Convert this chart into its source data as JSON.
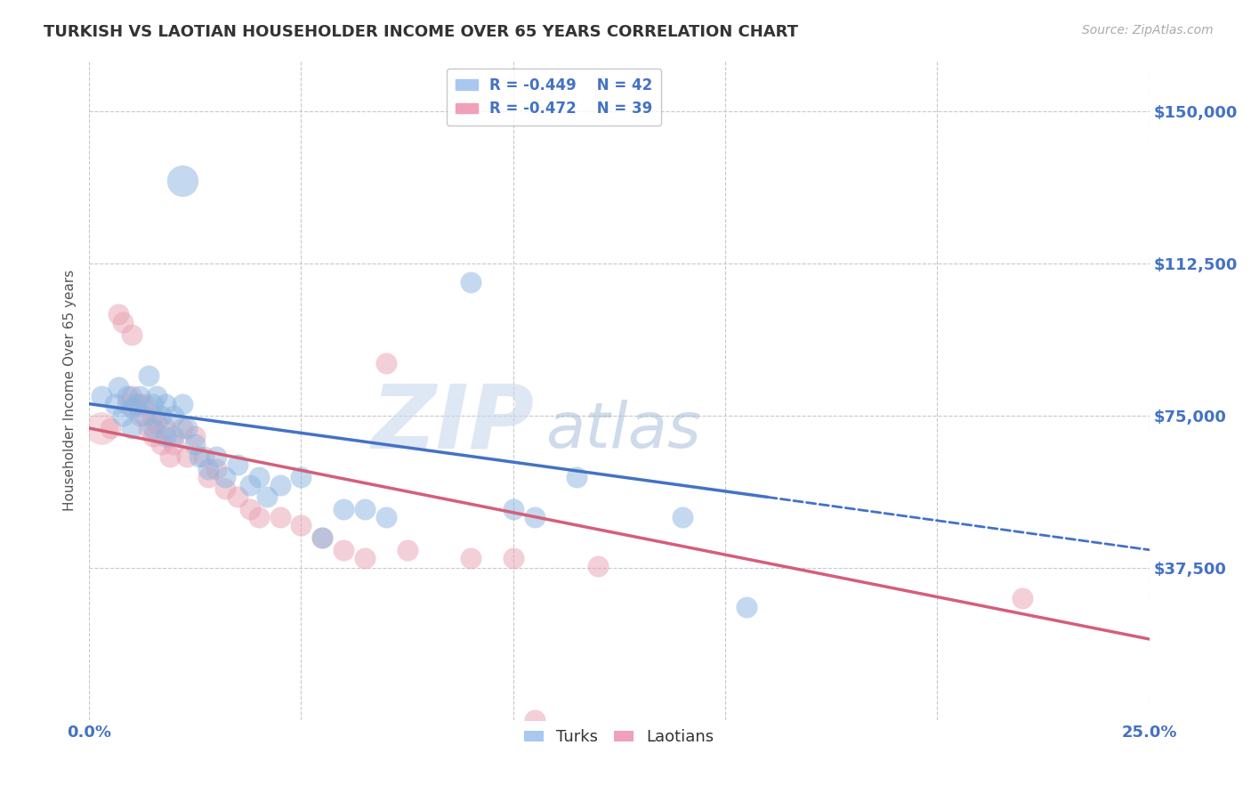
{
  "title": "TURKISH VS LAOTIAN HOUSEHOLDER INCOME OVER 65 YEARS CORRELATION CHART",
  "source": "Source: ZipAtlas.com",
  "ylabel": "Householder Income Over 65 years",
  "y_tick_labels": [
    "$150,000",
    "$112,500",
    "$75,000",
    "$37,500"
  ],
  "y_tick_values": [
    150000,
    112500,
    75000,
    37500
  ],
  "xlim": [
    0.0,
    0.25
  ],
  "ylim": [
    0,
    162500
  ],
  "turks_R": "-0.449",
  "turks_N": "42",
  "laotians_R": "-0.472",
  "laotians_N": "39",
  "turk_color": "#8ab4e0",
  "laotian_color": "#e8a0b0",
  "turk_line_color": "#4472c4",
  "laotian_line_color": "#d45f7a",
  "turk_line": [
    [
      0.0,
      78000
    ],
    [
      0.16,
      55000
    ]
  ],
  "turk_line_dash": [
    [
      0.16,
      55000
    ],
    [
      0.25,
      42000
    ]
  ],
  "laotian_line": [
    [
      0.0,
      72000
    ],
    [
      0.25,
      20000
    ]
  ],
  "turk_scatter": [
    [
      0.003,
      80000
    ],
    [
      0.006,
      78000
    ],
    [
      0.007,
      82000
    ],
    [
      0.008,
      75000
    ],
    [
      0.009,
      80000
    ],
    [
      0.01,
      77000
    ],
    [
      0.01,
      72000
    ],
    [
      0.011,
      78000
    ],
    [
      0.012,
      80000
    ],
    [
      0.013,
      75000
    ],
    [
      0.014,
      85000
    ],
    [
      0.015,
      78000
    ],
    [
      0.015,
      72000
    ],
    [
      0.016,
      80000
    ],
    [
      0.017,
      75000
    ],
    [
      0.018,
      78000
    ],
    [
      0.018,
      70000
    ],
    [
      0.02,
      75000
    ],
    [
      0.02,
      70000
    ],
    [
      0.022,
      78000
    ],
    [
      0.023,
      72000
    ],
    [
      0.025,
      68000
    ],
    [
      0.026,
      65000
    ],
    [
      0.028,
      62000
    ],
    [
      0.03,
      65000
    ],
    [
      0.032,
      60000
    ],
    [
      0.035,
      63000
    ],
    [
      0.038,
      58000
    ],
    [
      0.04,
      60000
    ],
    [
      0.042,
      55000
    ],
    [
      0.045,
      58000
    ],
    [
      0.05,
      60000
    ],
    [
      0.055,
      45000
    ],
    [
      0.06,
      52000
    ],
    [
      0.065,
      52000
    ],
    [
      0.07,
      50000
    ],
    [
      0.09,
      108000
    ],
    [
      0.1,
      52000
    ],
    [
      0.105,
      50000
    ],
    [
      0.115,
      60000
    ],
    [
      0.14,
      50000
    ],
    [
      0.155,
      28000
    ]
  ],
  "turk_outlier": [
    0.022,
    133000
  ],
  "laotian_scatter": [
    [
      0.005,
      72000
    ],
    [
      0.007,
      100000
    ],
    [
      0.008,
      98000
    ],
    [
      0.009,
      78000
    ],
    [
      0.01,
      95000
    ],
    [
      0.01,
      80000
    ],
    [
      0.012,
      78000
    ],
    [
      0.012,
      75000
    ],
    [
      0.013,
      78000
    ],
    [
      0.014,
      72000
    ],
    [
      0.015,
      75000
    ],
    [
      0.015,
      70000
    ],
    [
      0.016,
      73000
    ],
    [
      0.017,
      68000
    ],
    [
      0.018,
      72000
    ],
    [
      0.019,
      65000
    ],
    [
      0.02,
      68000
    ],
    [
      0.022,
      72000
    ],
    [
      0.023,
      65000
    ],
    [
      0.025,
      70000
    ],
    [
      0.027,
      65000
    ],
    [
      0.028,
      60000
    ],
    [
      0.03,
      62000
    ],
    [
      0.032,
      57000
    ],
    [
      0.035,
      55000
    ],
    [
      0.038,
      52000
    ],
    [
      0.04,
      50000
    ],
    [
      0.045,
      50000
    ],
    [
      0.05,
      48000
    ],
    [
      0.055,
      45000
    ],
    [
      0.06,
      42000
    ],
    [
      0.065,
      40000
    ],
    [
      0.07,
      88000
    ],
    [
      0.075,
      42000
    ],
    [
      0.09,
      40000
    ],
    [
      0.1,
      40000
    ],
    [
      0.105,
      0
    ],
    [
      0.12,
      38000
    ],
    [
      0.22,
      30000
    ]
  ],
  "background_color": "#ffffff",
  "grid_color": "#c8c8c8",
  "label_color": "#4472c4",
  "zip_watermark_color": "#c8d8ee",
  "atlas_watermark_color": "#a0b8d8"
}
